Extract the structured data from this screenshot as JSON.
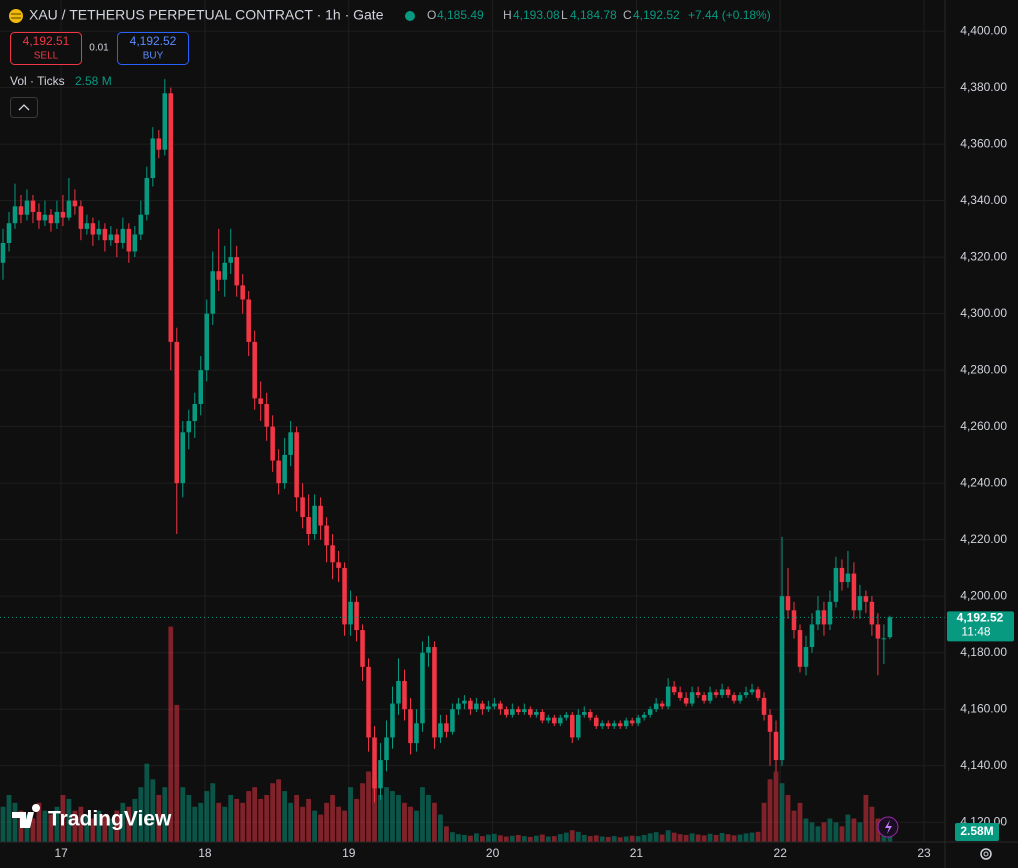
{
  "chart_data": {
    "type": "candlestick",
    "header": {
      "symbol": "XAU / TETHERUS PERPETUAL CONTRACT · 1h · Gate",
      "o_key": "O",
      "o_value": "4,185.49",
      "h_key": "H",
      "h_value": "4,193.08",
      "l_key": "L",
      "l_value": "4,184.78",
      "c_key": "C",
      "c_value": "4,192.52",
      "change": "+7.44 (+0.18%)"
    },
    "trade": {
      "sell_price": "4,192.51",
      "sell_label": "SELL",
      "spread": "0.01",
      "buy_price": "4,192.52",
      "buy_label": "BUY"
    },
    "volume_legend": {
      "label": "Vol · Ticks",
      "value": "2.58 M"
    },
    "price_tag": {
      "price": "4,192.52",
      "countdown": "11:48"
    },
    "volume_tag": "2.58M",
    "logo": "TradingView",
    "up_color": "#089981",
    "down_color": "#f23645",
    "ylim": [
      4113,
      4411
    ],
    "yticks": [
      {
        "value": 4120,
        "label": "4,120.00"
      },
      {
        "value": 4140,
        "label": "4,140.00"
      },
      {
        "value": 4160,
        "label": "4,160.00"
      },
      {
        "value": 4180,
        "label": "4,180.00"
      },
      {
        "value": 4200,
        "label": "4,200.00"
      },
      {
        "value": 4220,
        "label": "4,220.00"
      },
      {
        "value": 4240,
        "label": "4,240.00"
      },
      {
        "value": 4260,
        "label": "4,260.00"
      },
      {
        "value": 4280,
        "label": "4,280.00"
      },
      {
        "value": 4300,
        "label": "4,300.00"
      },
      {
        "value": 4320,
        "label": "4,320.00"
      },
      {
        "value": 4340,
        "label": "4,340.00"
      },
      {
        "value": 4360,
        "label": "4,360.00"
      },
      {
        "value": 4380,
        "label": "4,380.00"
      },
      {
        "value": 4400,
        "label": "4,400.00"
      }
    ],
    "xlim": [
      -10.2,
      147.5
    ],
    "xticks": [
      {
        "value": 0,
        "label": "17"
      },
      {
        "value": 24,
        "label": "18"
      },
      {
        "value": 48,
        "label": "19"
      },
      {
        "value": 72,
        "label": "20"
      },
      {
        "value": 96,
        "label": "21"
      },
      {
        "value": 120,
        "label": "22"
      },
      {
        "value": 144,
        "label": "23"
      }
    ],
    "grid": true,
    "vlim": [
      0,
      60
    ],
    "ohlc": [
      [
        4318,
        4330,
        4312,
        4325
      ],
      [
        4325,
        4336,
        4322,
        4332
      ],
      [
        4332,
        4346,
        4330,
        4338
      ],
      [
        4338,
        4342,
        4332,
        4335
      ],
      [
        4335,
        4344,
        4333,
        4340
      ],
      [
        4340,
        4342,
        4332,
        4336
      ],
      [
        4336,
        4339,
        4330,
        4333
      ],
      [
        4333,
        4340,
        4331,
        4335
      ],
      [
        4335,
        4337,
        4329,
        4332
      ],
      [
        4332,
        4340,
        4330,
        4336
      ],
      [
        4336,
        4342,
        4331,
        4334
      ],
      [
        4334,
        4348,
        4333,
        4340
      ],
      [
        4340,
        4344,
        4335,
        4338
      ],
      [
        4338,
        4340,
        4326,
        4330
      ],
      [
        4330,
        4335,
        4328,
        4332
      ],
      [
        4332,
        4334,
        4324,
        4328
      ],
      [
        4328,
        4333,
        4326,
        4330
      ],
      [
        4330,
        4332,
        4322,
        4326
      ],
      [
        4326,
        4331,
        4324,
        4328
      ],
      [
        4328,
        4330,
        4320,
        4325
      ],
      [
        4325,
        4334,
        4323,
        4330
      ],
      [
        4330,
        4332,
        4318,
        4322
      ],
      [
        4322,
        4331,
        4320,
        4328
      ],
      [
        4328,
        4340,
        4326,
        4335
      ],
      [
        4335,
        4352,
        4333,
        4348
      ],
      [
        4348,
        4366,
        4345,
        4362
      ],
      [
        4362,
        4365,
        4355,
        4358
      ],
      [
        4358,
        4383,
        4356,
        4378
      ],
      [
        4378,
        4380,
        4280,
        4290
      ],
      [
        4290,
        4295,
        4222,
        4240
      ],
      [
        4240,
        4262,
        4235,
        4258
      ],
      [
        4258,
        4266,
        4252,
        4262
      ],
      [
        4262,
        4272,
        4256,
        4268
      ],
      [
        4268,
        4285,
        4264,
        4280
      ],
      [
        4280,
        4305,
        4276,
        4300
      ],
      [
        4300,
        4322,
        4296,
        4315
      ],
      [
        4315,
        4330,
        4308,
        4312
      ],
      [
        4312,
        4324,
        4306,
        4318
      ],
      [
        4318,
        4330,
        4314,
        4320
      ],
      [
        4320,
        4324,
        4306,
        4310
      ],
      [
        4310,
        4314,
        4300,
        4305
      ],
      [
        4305,
        4308,
        4285,
        4290
      ],
      [
        4290,
        4294,
        4266,
        4270
      ],
      [
        4270,
        4276,
        4262,
        4268
      ],
      [
        4268,
        4272,
        4255,
        4260
      ],
      [
        4260,
        4264,
        4244,
        4248
      ],
      [
        4248,
        4252,
        4236,
        4240
      ],
      [
        4240,
        4256,
        4238,
        4250
      ],
      [
        4250,
        4262,
        4246,
        4258
      ],
      [
        4258,
        4260,
        4230,
        4235
      ],
      [
        4235,
        4240,
        4224,
        4228
      ],
      [
        4228,
        4236,
        4218,
        4222
      ],
      [
        4222,
        4236,
        4220,
        4232
      ],
      [
        4232,
        4235,
        4220,
        4225
      ],
      [
        4225,
        4228,
        4212,
        4218
      ],
      [
        4218,
        4222,
        4206,
        4212
      ],
      [
        4212,
        4216,
        4205,
        4210
      ],
      [
        4210,
        4212,
        4186,
        4190
      ],
      [
        4190,
        4202,
        4186,
        4198
      ],
      [
        4198,
        4200,
        4184,
        4188
      ],
      [
        4188,
        4190,
        4170,
        4175
      ],
      [
        4175,
        4178,
        4145,
        4150
      ],
      [
        4150,
        4154,
        4127,
        4132
      ],
      [
        4132,
        4148,
        4128,
        4142
      ],
      [
        4142,
        4156,
        4138,
        4150
      ],
      [
        4150,
        4168,
        4146,
        4162
      ],
      [
        4162,
        4178,
        4158,
        4170
      ],
      [
        4170,
        4174,
        4156,
        4160
      ],
      [
        4160,
        4164,
        4144,
        4148
      ],
      [
        4148,
        4160,
        4145,
        4155
      ],
      [
        4155,
        4184,
        4152,
        4180
      ],
      [
        4180,
        4186,
        4175,
        4182
      ],
      [
        4182,
        4184,
        4146,
        4150
      ],
      [
        4150,
        4158,
        4148,
        4155
      ],
      [
        4155,
        4158,
        4150,
        4152
      ],
      [
        4152,
        4162,
        4151,
        4160
      ],
      [
        4160,
        4164,
        4158,
        4162
      ],
      [
        4162,
        4165,
        4160,
        4163
      ],
      [
        4163,
        4164,
        4158,
        4160
      ],
      [
        4160,
        4164,
        4159,
        4162
      ],
      [
        4162,
        4163,
        4158,
        4160
      ],
      [
        4160,
        4163,
        4159,
        4161
      ],
      [
        4161,
        4164,
        4160,
        4162
      ],
      [
        4162,
        4163,
        4158,
        4160
      ],
      [
        4160,
        4161,
        4157,
        4158
      ],
      [
        4158,
        4162,
        4157,
        4160
      ],
      [
        4160,
        4161,
        4158,
        4159
      ],
      [
        4159,
        4162,
        4158,
        4160
      ],
      [
        4160,
        4161,
        4157,
        4158
      ],
      [
        4158,
        4160,
        4157,
        4159
      ],
      [
        4159,
        4160,
        4155,
        4156
      ],
      [
        4156,
        4158,
        4155,
        4157
      ],
      [
        4157,
        4158,
        4154,
        4155
      ],
      [
        4155,
        4158,
        4154,
        4157
      ],
      [
        4157,
        4159,
        4156,
        4158
      ],
      [
        4158,
        4159,
        4148,
        4150
      ],
      [
        4150,
        4160,
        4149,
        4158
      ],
      [
        4158,
        4161,
        4157,
        4159
      ],
      [
        4159,
        4160,
        4156,
        4157
      ],
      [
        4157,
        4158,
        4153,
        4154
      ],
      [
        4154,
        4156,
        4153,
        4155
      ],
      [
        4155,
        4156,
        4153,
        4154
      ],
      [
        4154,
        4156,
        4153,
        4155
      ],
      [
        4155,
        4156,
        4153,
        4154
      ],
      [
        4154,
        4157,
        4153,
        4156
      ],
      [
        4156,
        4157,
        4154,
        4155
      ],
      [
        4155,
        4158,
        4154,
        4157
      ],
      [
        4157,
        4159,
        4156,
        4158
      ],
      [
        4158,
        4161,
        4157,
        4160
      ],
      [
        4160,
        4164,
        4159,
        4162
      ],
      [
        4162,
        4163,
        4160,
        4161
      ],
      [
        4161,
        4171,
        4160,
        4168
      ],
      [
        4168,
        4170,
        4165,
        4166
      ],
      [
        4166,
        4168,
        4163,
        4164
      ],
      [
        4164,
        4166,
        4161,
        4162
      ],
      [
        4162,
        4168,
        4161,
        4166
      ],
      [
        4166,
        4168,
        4164,
        4165
      ],
      [
        4165,
        4166,
        4162,
        4163
      ],
      [
        4163,
        4168,
        4162,
        4166
      ],
      [
        4166,
        4167,
        4164,
        4165
      ],
      [
        4165,
        4169,
        4164,
        4167
      ],
      [
        4167,
        4168,
        4164,
        4165
      ],
      [
        4165,
        4166,
        4162,
        4163
      ],
      [
        4163,
        4166,
        4162,
        4165
      ],
      [
        4165,
        4168,
        4164,
        4166
      ],
      [
        4166,
        4169,
        4165,
        4167
      ],
      [
        4167,
        4168,
        4163,
        4164
      ],
      [
        4164,
        4166,
        4156,
        4158
      ],
      [
        4158,
        4160,
        4140,
        4152
      ],
      [
        4152,
        4156,
        4138,
        4142
      ],
      [
        4142,
        4221,
        4140,
        4200
      ],
      [
        4200,
        4210,
        4192,
        4195
      ],
      [
        4195,
        4198,
        4185,
        4188
      ],
      [
        4188,
        4190,
        4173,
        4175
      ],
      [
        4175,
        4186,
        4172,
        4182
      ],
      [
        4182,
        4194,
        4180,
        4190
      ],
      [
        4190,
        4200,
        4188,
        4195
      ],
      [
        4195,
        4198,
        4186,
        4190
      ],
      [
        4190,
        4202,
        4188,
        4198
      ],
      [
        4198,
        4214,
        4196,
        4210
      ],
      [
        4210,
        4213,
        4202,
        4205
      ],
      [
        4205,
        4216,
        4203,
        4208
      ],
      [
        4208,
        4212,
        4192,
        4195
      ],
      [
        4195,
        4204,
        4192,
        4200
      ],
      [
        4200,
        4202,
        4194,
        4198
      ],
      [
        4198,
        4200,
        4186,
        4190
      ],
      [
        4190,
        4194,
        4172,
        4185
      ],
      [
        4185,
        4190,
        4176,
        4185.08
      ],
      [
        4185.49,
        4193.08,
        4184.78,
        4192.52
      ]
    ],
    "volume": [
      9,
      12,
      10,
      8,
      7,
      6,
      10,
      8,
      7,
      9,
      12,
      11,
      8,
      9,
      7,
      6,
      8,
      7,
      6,
      8,
      10,
      9,
      11,
      14,
      20,
      16,
      12,
      14,
      55,
      35,
      14,
      12,
      9,
      10,
      13,
      15,
      10,
      9,
      12,
      11,
      10,
      13,
      14,
      11,
      12,
      15,
      16,
      13,
      10,
      12,
      9,
      11,
      8,
      7,
      10,
      12,
      9,
      8,
      14,
      11,
      15,
      18,
      16,
      12,
      14,
      13,
      12,
      10,
      9,
      8,
      14,
      12,
      10,
      7,
      4,
      2.5,
      2,
      1.8,
      1.6,
      2.2,
      1.5,
      1.9,
      2.1,
      1.7,
      1.4,
      1.6,
      1.8,
      1.5,
      1.3,
      1.6,
      1.9,
      1.4,
      1.5,
      2,
      2.4,
      3,
      2.6,
      1.8,
      1.5,
      1.7,
      1.4,
      1.3,
      1.5,
      1.2,
      1.4,
      1.6,
      1.5,
      1.8,
      2.2,
      2.5,
      1.9,
      3,
      2.4,
      2,
      1.8,
      2.2,
      1.9,
      1.7,
      2.1,
      1.8,
      2.3,
      2,
      1.7,
      1.9,
      2.2,
      2.4,
      2.6,
      10,
      16,
      18,
      15,
      12,
      8,
      10,
      6,
      5,
      4,
      5,
      6,
      5,
      4,
      7,
      6,
      5,
      12,
      9,
      6,
      4,
      3,
      2.58
    ]
  }
}
